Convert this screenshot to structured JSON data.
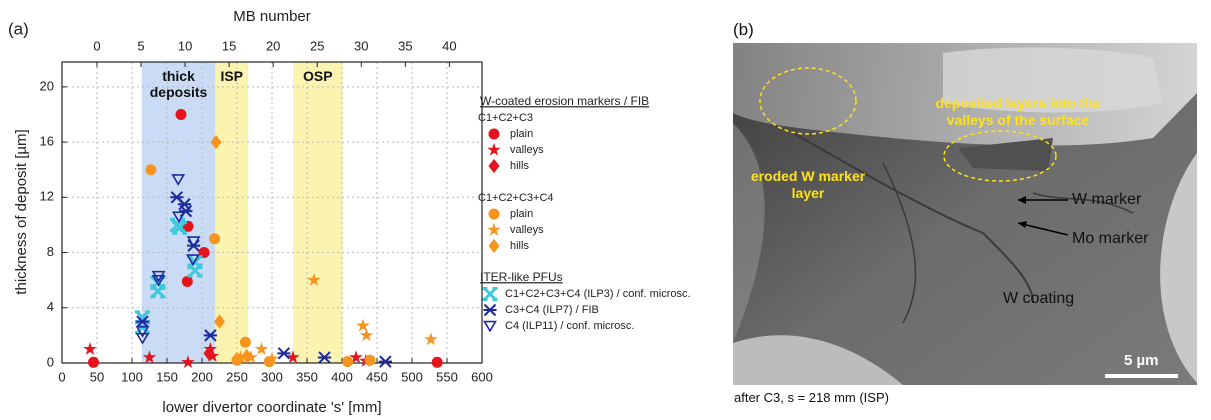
{
  "chart_data": {
    "type": "scatter",
    "panel_label": "(a)",
    "xlabel": "lower divertor coordinate 's' [mm]",
    "ylabel": "thickness of deposit [µm]",
    "x2label": "MB number",
    "xlim": [
      0,
      600
    ],
    "xticks": [
      0,
      50,
      100,
      150,
      200,
      250,
      300,
      350,
      400,
      450,
      500,
      550,
      600
    ],
    "x2lim": [
      -3.97,
      43.7
    ],
    "x2ticks": [
      0,
      5,
      10,
      15,
      20,
      25,
      30,
      35,
      40
    ],
    "ylim": [
      0,
      21.8
    ],
    "yticks": [
      0,
      4,
      8,
      12,
      16,
      20
    ],
    "grid": true,
    "regions": [
      {
        "label": "thick deposits",
        "x": [
          114,
          219
        ],
        "color": "#c9dbf5"
      },
      {
        "label": "ISP",
        "x": [
          219,
          266
        ],
        "color": "#fbf3b0"
      },
      {
        "label": "OSP",
        "x": [
          330,
          401
        ],
        "color": "#fbf3b0"
      }
    ],
    "series": [
      {
        "section": "W-coated erosion markers / FIB",
        "group": "C1+C2+C3",
        "name": "plain",
        "marker": "circle",
        "color": "#e3141c",
        "x": [
          45,
          170,
          180,
          179,
          203,
          536
        ],
        "values": [
          0.05,
          18,
          9.9,
          5.9,
          8,
          0.05
        ]
      },
      {
        "section": "W-coated erosion markers / FIB",
        "group": "C1+C2+C3",
        "name": "valleys",
        "marker": "star",
        "color": "#e3141c",
        "x": [
          40,
          125,
          180,
          212,
          215,
          330,
          420,
          434
        ],
        "values": [
          1,
          0.4,
          0.05,
          1,
          0.5,
          0.4,
          0.4,
          0.15
        ]
      },
      {
        "section": "W-coated erosion markers / FIB",
        "group": "C1+C2+C3",
        "name": "hills",
        "marker": "diamond",
        "color": "#e3141c",
        "x": [
          210
        ],
        "values": [
          0.7
        ]
      },
      {
        "section": "W-coated erosion markers / FIB",
        "group": "C1+C2+C3+C4",
        "name": "plain",
        "marker": "circle",
        "color": "#f7941d",
        "x": [
          127,
          218,
          262,
          296,
          250,
          408,
          440
        ],
        "values": [
          14,
          9,
          1.5,
          0.1,
          0.2,
          0.1,
          0.2
        ]
      },
      {
        "section": "W-coated erosion markers / FIB",
        "group": "C1+C2+C3+C4",
        "name": "valleys",
        "marker": "star",
        "color": "#f7941d",
        "x": [
          360,
          430,
          435,
          527,
          255,
          270,
          285,
          300
        ],
        "values": [
          6,
          2.7,
          2,
          1.7,
          0.4,
          0.4,
          1,
          0.3
        ]
      },
      {
        "section": "W-coated erosion markers / FIB",
        "group": "C1+C2+C3+C4",
        "name": "hills",
        "marker": "diamond",
        "color": "#f7941d",
        "x": [
          220,
          225,
          250,
          264
        ],
        "values": [
          16,
          3,
          0.3,
          0.5
        ]
      },
      {
        "section": "ITER-like PFUs",
        "name": "C1+C2+C3+C4 (ILP3) / conf. microsc.",
        "marker": "x-thick",
        "color": "#3ec8dc",
        "x": [
          115,
          115,
          137,
          137,
          165,
          168,
          190,
          190
        ],
        "values": [
          3.3,
          2.6,
          5.2,
          5.8,
          10,
          9.8,
          7.3,
          6.7
        ]
      },
      {
        "section": "ITER-like PFUs",
        "name": "C3+C4 (ILP7) / FIB",
        "marker": "asterisk",
        "color": "#1c2a9e",
        "x": [
          115,
          164,
          175,
          177,
          188,
          212,
          317,
          375,
          462
        ],
        "values": [
          3,
          12,
          11.5,
          11,
          8.5,
          2,
          0.7,
          0.4,
          0.1
        ]
      },
      {
        "section": "ITER-like PFUs",
        "name": "C4 (ILP11) / conf. microsc.",
        "marker": "triangle-down",
        "color": "#1c2a9e",
        "x": [
          115,
          115,
          138,
          138,
          166,
          167,
          188,
          187
        ],
        "values": [
          2.3,
          1.8,
          6.3,
          6,
          13.3,
          10.6,
          8.8,
          7.5
        ]
      }
    ]
  },
  "panel_b": {
    "label": "(b)",
    "annotations": [
      "deposited layers into the valleys of the surface",
      "eroded W marker layer",
      "W marker",
      "Mo marker",
      "W coating"
    ],
    "scale_bar": "5 µm",
    "caption": "after C3, s = 218 mm (ISP)"
  }
}
